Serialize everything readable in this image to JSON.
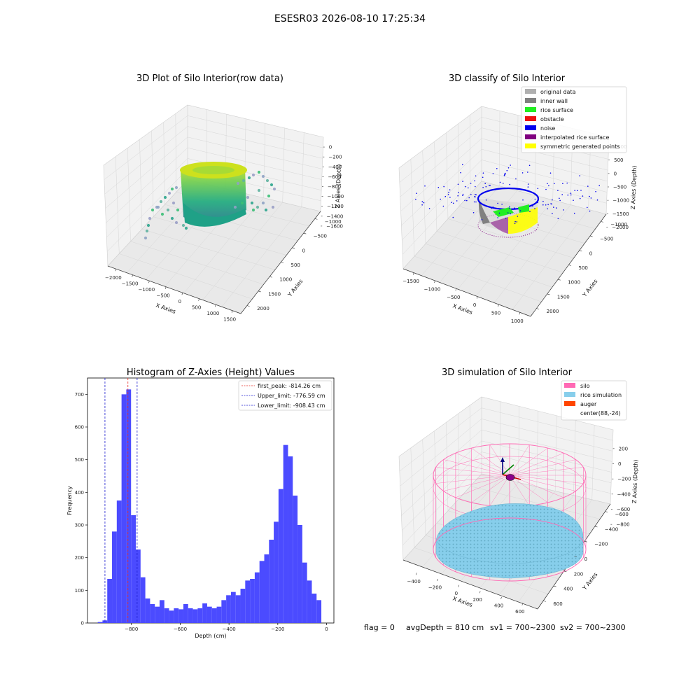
{
  "figure": {
    "suptitle": "ESESR03 2026-08-10 17:25:34",
    "footer": {
      "flag": "flag = 0",
      "avg_depth": "avgDepth = 810 cm",
      "sv1": "sv1 = 700~2300",
      "sv2": "sv2 = 700~2300"
    }
  },
  "colors": {
    "hist_bar": "#4b4bff",
    "first_peak": "#e8302a",
    "limit": "#1f1fd0",
    "original_data": "#b0b0b0",
    "inner_wall": "#808080",
    "rice_surface": "#22ee22",
    "obstacle": "#ee1111",
    "noise": "#0000ee",
    "interpolated_rice_surface": "#800080",
    "symmetric_generated_points": "#ffff00",
    "silo": "#ff69b4",
    "rice_simulation": "#87ceeb",
    "auger": "#ff4500"
  },
  "chart_data": [
    {
      "type": "scatter",
      "panel": "raw",
      "title": "3D Plot of Silo Interior(row data)",
      "xlabel": "X Axies",
      "ylabel": "Y Axies",
      "zlabel": "Z Axies (Depth)",
      "x_ticks": [
        "−2000",
        "−1500",
        "−1000",
        "−500",
        "0",
        "500",
        "1000",
        "1500"
      ],
      "y_ticks": [
        "−1000",
        "−500",
        "0",
        "500",
        "1000",
        "1500",
        "2000"
      ],
      "z_ticks": [
        "0",
        "−200",
        "−400",
        "−600",
        "−800",
        "−1000",
        "−1200",
        "−1400",
        "−1600"
      ],
      "colormap": "viridis"
    },
    {
      "type": "scatter",
      "panel": "classify",
      "title": "3D classify of Silo Interior",
      "xlabel": "X Axies",
      "ylabel": "Y Axies",
      "zlabel": "Z Axies (Depth)",
      "x_ticks": [
        "−1500",
        "−1000",
        "−500",
        "0",
        "500",
        "1000"
      ],
      "y_ticks": [
        "−1000",
        "−500",
        "0",
        "500",
        "1000",
        "1500",
        "2000"
      ],
      "z_ticks": [
        "1000",
        "500",
        "0",
        "−500",
        "−1000",
        "−1500",
        "−2000"
      ],
      "legend": [
        "original data",
        "inner wall",
        "rice surface",
        "obstacle",
        "noise",
        "interpolated rice surface",
        "symmetric generated points"
      ]
    },
    {
      "type": "bar",
      "panel": "histogram",
      "title": "Histogram of Z-Axies (Height) Values",
      "xlabel": "Depth (cm)",
      "ylabel": "Frequency",
      "xlim": [
        -980,
        30
      ],
      "ylim": [
        0,
        750
      ],
      "x_ticks": [
        -800,
        -600,
        -400,
        -200,
        0
      ],
      "y_ticks": [
        0,
        100,
        200,
        300,
        400,
        500,
        600,
        700
      ],
      "bin_width": 19.5,
      "bin_starts": [
        -938,
        -918.5,
        -899,
        -879.5,
        -860,
        -840.5,
        -821,
        -801.5,
        -782,
        -762.5,
        -743,
        -723.5,
        -704,
        -684.5,
        -665,
        -645.5,
        -626,
        -606.5,
        -587,
        -567.5,
        -548,
        -528.5,
        -509,
        -489.5,
        -470,
        -450.5,
        -431,
        -411.5,
        -392,
        -372.5,
        -353,
        -333.5,
        -314,
        -294.5,
        -275,
        -255.5,
        -236,
        -216.5,
        -197,
        -177.5,
        -158,
        -138.5,
        -119,
        -99.5,
        -80,
        -60.5,
        -41,
        -21.5
      ],
      "values": [
        3,
        8,
        135,
        280,
        375,
        700,
        715,
        330,
        225,
        140,
        75,
        58,
        50,
        70,
        45,
        38,
        45,
        42,
        58,
        45,
        42,
        45,
        60,
        50,
        45,
        50,
        70,
        85,
        95,
        85,
        105,
        130,
        135,
        155,
        190,
        210,
        255,
        310,
        410,
        545,
        510,
        390,
        300,
        185,
        130,
        90,
        70,
        0
      ],
      "annotations": [
        {
          "label": "first_peak: -814.26 cm",
          "x": -814.26,
          "style": "red-dashed"
        },
        {
          "label": "Upper_limit: -776.59 cm",
          "x": -776.59,
          "style": "blue-dashed"
        },
        {
          "label": "Lower_limit: -908.43 cm",
          "x": -908.43,
          "style": "blue-dashed"
        }
      ],
      "legend_position": "top-right"
    },
    {
      "type": "scatter",
      "panel": "simulation",
      "title": "3D simulation of Silo Interior",
      "xlabel": "X Axies",
      "ylabel": "Y Axies",
      "zlabel": "Z Axies (Depth)",
      "x_ticks": [
        "−400",
        "−200",
        "0",
        "200",
        "400",
        "600"
      ],
      "y_ticks": [
        "−600",
        "−400",
        "−200",
        "0",
        "200",
        "400",
        "600"
      ],
      "z_ticks": [
        "200",
        "0",
        "−200",
        "−400",
        "−600",
        "−800"
      ],
      "legend": [
        "silo",
        "rice simulation",
        "auger",
        "center(88,-24)"
      ]
    }
  ]
}
